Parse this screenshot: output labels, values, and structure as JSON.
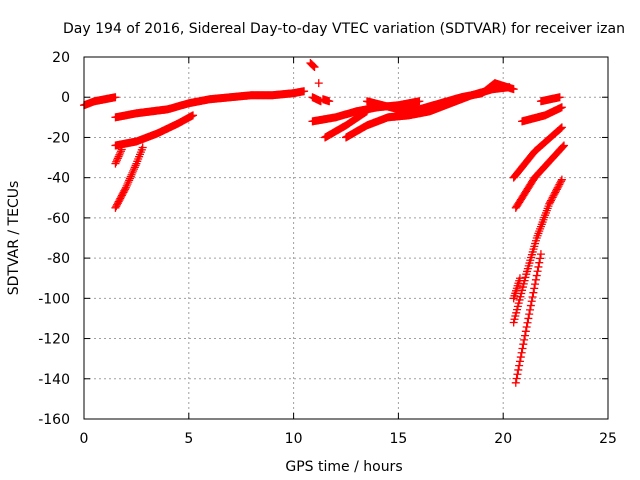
{
  "chart_data": {
    "type": "scatter",
    "title": "Day 194 of 2016, Sidereal Day-to-day VTEC variation (SDTVAR) for receiver izan",
    "xlabel": "GPS time / hours",
    "ylabel": "SDTVAR / TECUs",
    "xlim": [
      0,
      25
    ],
    "ylim": [
      -160,
      20
    ],
    "xticks": [
      0,
      5,
      10,
      15,
      20,
      25
    ],
    "yticks": [
      20,
      0,
      -20,
      -40,
      -60,
      -80,
      -100,
      -120,
      -140,
      -160
    ],
    "grid": true,
    "legend": "none",
    "marker": "plus",
    "color": "#ff0000",
    "segments": [
      {
        "x": [
          0.0,
          0.5,
          1.0,
          1.5
        ],
        "y": [
          -4,
          -2,
          -1,
          0
        ]
      },
      {
        "x": [
          1.5,
          2.5,
          4.0,
          5.0,
          6.0,
          7.0,
          8.0,
          9.0,
          10.0,
          10.5
        ],
        "y": [
          -10,
          -8,
          -6,
          -3,
          -1,
          0,
          1,
          1,
          2,
          3
        ]
      },
      {
        "x": [
          1.5,
          2.5,
          3.5,
          4.5,
          5.2
        ],
        "y": [
          -24,
          -22,
          -18,
          -13,
          -9
        ]
      },
      {
        "x": [
          1.5,
          2.0,
          2.5,
          2.8
        ],
        "y": [
          -55,
          -45,
          -33,
          -25
        ]
      },
      {
        "x": [
          1.5,
          1.8
        ],
        "y": [
          -33,
          -26
        ]
      },
      {
        "x": [
          10.8,
          11.0
        ],
        "y": [
          17,
          15
        ]
      },
      {
        "x": [
          10.9,
          11.3
        ],
        "y": [
          0,
          -2
        ]
      },
      {
        "x": [
          11.4,
          11.7
        ],
        "y": [
          -1,
          -2
        ]
      },
      {
        "x": [
          11.2
        ],
        "y": [
          7
        ]
      },
      {
        "x": [
          10.9,
          12.0,
          13.0,
          14.0,
          15.0,
          16.0
        ],
        "y": [
          -12,
          -10,
          -7,
          -5,
          -4,
          -2
        ]
      },
      {
        "x": [
          11.5,
          12.5,
          13.5
        ],
        "y": [
          -20,
          -14,
          -7
        ]
      },
      {
        "x": [
          12.5,
          13.5,
          14.5,
          15.5,
          16.5,
          17.5,
          18.5,
          19.5,
          20.3
        ],
        "y": [
          -20,
          -14,
          -10,
          -9,
          -7,
          -3,
          1,
          4,
          5
        ]
      },
      {
        "x": [
          13.5,
          15.0,
          16.0,
          17.0,
          18.0,
          19.0,
          19.6,
          20.5
        ],
        "y": [
          -2,
          -6,
          -6,
          -3,
          0,
          2,
          7,
          4
        ]
      },
      {
        "x": [
          20.5,
          21.5,
          22.8
        ],
        "y": [
          -40,
          -27,
          -15
        ]
      },
      {
        "x": [
          20.6,
          21.5,
          22.9
        ],
        "y": [
          -55,
          -40,
          -24
        ]
      },
      {
        "x": [
          20.9,
          22.0,
          22.8
        ],
        "y": [
          -12,
          -9,
          -5
        ]
      },
      {
        "x": [
          21.8,
          22.7
        ],
        "y": [
          -2,
          0
        ]
      },
      {
        "x": [
          20.5,
          21.1,
          21.6,
          22.2,
          22.8
        ],
        "y": [
          -112,
          -88,
          -70,
          -53,
          -41
        ]
      },
      {
        "x": [
          20.6,
          21.2,
          21.8
        ],
        "y": [
          -142,
          -110,
          -78
        ]
      },
      {
        "x": [
          20.5,
          20.8
        ],
        "y": [
          -100,
          -90
        ]
      }
    ]
  }
}
